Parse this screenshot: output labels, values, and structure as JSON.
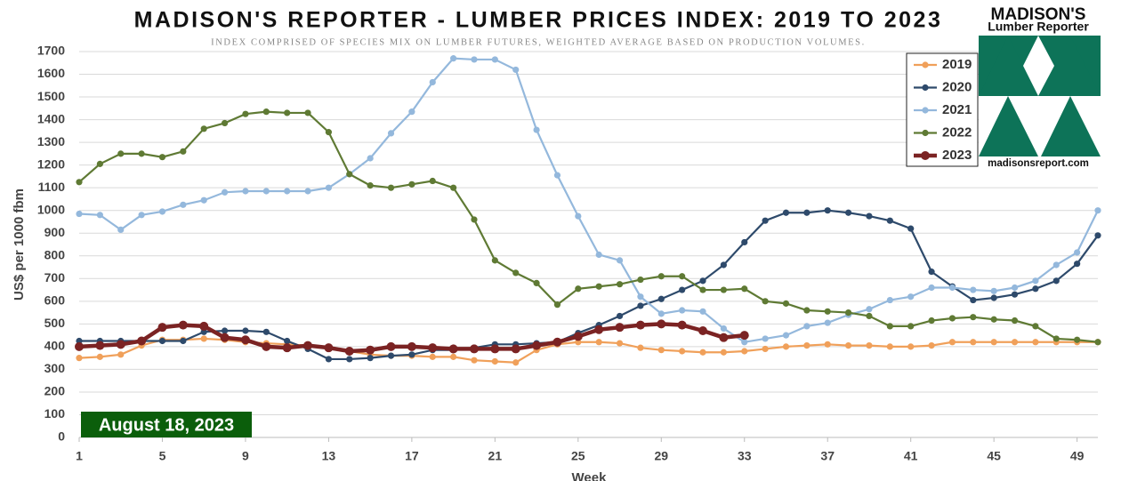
{
  "chart_data": {
    "type": "line",
    "title": "MADISON'S REPORTER - LUMBER PRICES INDEX: 2019 TO 2023",
    "subtitle": "INDEX COMPRISED OF SPECIES MIX ON LUMBER FUTURES, WEIGHTED AVERAGE BASED ON PRODUCTION VOLUMES.",
    "y_label": "US$ per 1000 fbm",
    "x_label": "Week",
    "annotation": "August 18, 2023",
    "logo": {
      "name": "MADISON'S",
      "sub": "Lumber Reporter",
      "url": "madisonsreport.com"
    },
    "x": [
      1,
      2,
      3,
      4,
      5,
      6,
      7,
      8,
      9,
      10,
      11,
      12,
      13,
      14,
      15,
      16,
      17,
      18,
      19,
      20,
      21,
      22,
      23,
      24,
      25,
      26,
      27,
      28,
      29,
      30,
      31,
      32,
      33,
      34,
      35,
      36,
      37,
      38,
      39,
      40,
      41,
      42,
      43,
      44,
      45,
      46,
      47,
      48,
      49,
      50
    ],
    "series": [
      {
        "name": "2019",
        "color": "#f0a05a",
        "values": [
          350,
          355,
          365,
          405,
          430,
          430,
          435,
          430,
          420,
          415,
          410,
          405,
          395,
          380,
          365,
          360,
          360,
          355,
          355,
          340,
          335,
          330,
          385,
          410,
          420,
          420,
          415,
          395,
          385,
          380,
          375,
          375,
          380,
          390,
          400,
          405,
          410,
          405,
          405,
          400,
          400,
          405,
          420,
          420,
          420,
          420,
          420,
          420,
          420,
          420
        ]
      },
      {
        "name": "2020",
        "color": "#2e4a6b",
        "values": [
          425,
          425,
          425,
          425,
          425,
          425,
          465,
          470,
          470,
          465,
          425,
          390,
          345,
          345,
          350,
          360,
          365,
          385,
          385,
          395,
          410,
          410,
          415,
          420,
          460,
          495,
          535,
          580,
          610,
          650,
          690,
          760,
          860,
          955,
          990,
          990,
          1000,
          990,
          975,
          955,
          920,
          730,
          665,
          605,
          615,
          630,
          655,
          690,
          765,
          890
        ]
      },
      {
        "name": "2021",
        "color": "#94b8dc",
        "values": [
          985,
          980,
          915,
          980,
          995,
          1025,
          1045,
          1080,
          1085,
          1085,
          1085,
          1085,
          1100,
          1160,
          1230,
          1340,
          1435,
          1565,
          1670,
          1665,
          1665,
          1620,
          1355,
          1155,
          975,
          805,
          780,
          620,
          545,
          560,
          555,
          480,
          420,
          435,
          450,
          490,
          505,
          540,
          565,
          605,
          620,
          660,
          660,
          650,
          645,
          660,
          690,
          760,
          815,
          1000
        ]
      },
      {
        "name": "2022",
        "color": "#5f7a34",
        "values": [
          1125,
          1205,
          1250,
          1250,
          1235,
          1260,
          1360,
          1385,
          1425,
          1435,
          1430,
          1430,
          1345,
          1160,
          1110,
          1100,
          1115,
          1130,
          1100,
          960,
          780,
          725,
          680,
          585,
          655,
          665,
          675,
          695,
          710,
          710,
          650,
          650,
          655,
          600,
          590,
          560,
          555,
          550,
          535,
          490,
          490,
          515,
          525,
          530,
          520,
          515,
          490,
          435,
          430,
          420
        ]
      },
      {
        "name": "2023",
        "color": "#7b2323",
        "values": [
          400,
          405,
          410,
          425,
          485,
          495,
          490,
          440,
          430,
          400,
          395,
          405,
          395,
          380,
          385,
          400,
          400,
          395,
          390,
          390,
          390,
          390,
          405,
          420,
          445,
          475,
          485,
          495,
          500,
          495,
          470,
          440,
          450,
          null,
          null,
          null,
          null,
          null,
          null,
          null,
          null,
          null,
          null,
          null,
          null,
          null,
          null,
          null,
          null,
          null
        ]
      }
    ],
    "xlim": [
      1,
      50
    ],
    "xticks": [
      1,
      5,
      9,
      13,
      17,
      21,
      25,
      29,
      33,
      37,
      41,
      45,
      49
    ],
    "ylim": [
      0,
      1700
    ],
    "yticks": [
      0,
      100,
      200,
      300,
      400,
      500,
      600,
      700,
      800,
      900,
      1000,
      1100,
      1200,
      1300,
      1400,
      1500,
      1600,
      1700
    ],
    "grid": true,
    "legend": "top-right"
  }
}
